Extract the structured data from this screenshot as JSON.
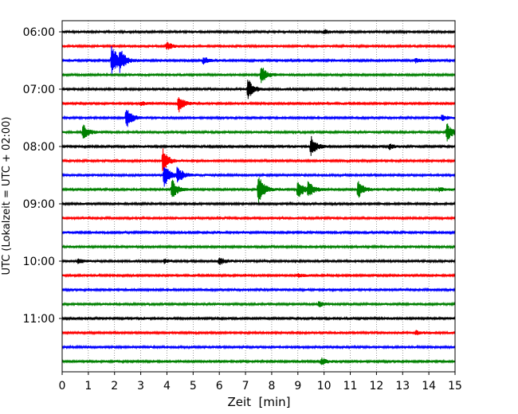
{
  "chart_data": {
    "type": "line",
    "title": "",
    "xlabel": "Zeit  [min]",
    "ylabel": "UTC (Lokalzeit = UTC + 02:00)",
    "xlim": [
      0,
      15
    ],
    "x_ticks": [
      0,
      1,
      2,
      3,
      4,
      5,
      6,
      7,
      8,
      9,
      10,
      11,
      12,
      13,
      14,
      15
    ],
    "y_tick_labels": [
      "06:00",
      "07:00",
      "08:00",
      "09:00",
      "10:00",
      "11:00"
    ],
    "vertical_grid": "dotted",
    "trace_interval_min": 15,
    "color_cycle": [
      "#000000",
      "#ff0000",
      "#0000ff",
      "#008000"
    ],
    "traces": [
      {
        "start": "06:00",
        "color": "black",
        "events": [
          {
            "t": 10.0,
            "amp": 0.15
          }
        ]
      },
      {
        "start": "06:15",
        "color": "red",
        "events": [
          {
            "t": 4.0,
            "amp": 0.3
          }
        ]
      },
      {
        "start": "06:30",
        "color": "blue",
        "events": [
          {
            "t": 1.9,
            "amp": 1.4
          },
          {
            "t": 2.2,
            "amp": 0.8
          },
          {
            "t": 5.4,
            "amp": 0.3
          },
          {
            "t": 13.5,
            "amp": 0.15
          }
        ]
      },
      {
        "start": "06:45",
        "color": "green",
        "events": [
          {
            "t": 7.6,
            "amp": 0.7
          }
        ]
      },
      {
        "start": "07:00",
        "color": "black",
        "events": [
          {
            "t": 7.1,
            "amp": 0.8
          }
        ]
      },
      {
        "start": "07:15",
        "color": "red",
        "events": [
          {
            "t": 4.45,
            "amp": 0.7
          },
          {
            "t": 3.0,
            "amp": 0.15
          }
        ]
      },
      {
        "start": "07:30",
        "color": "blue",
        "events": [
          {
            "t": 2.45,
            "amp": 0.9
          },
          {
            "t": 14.5,
            "amp": 0.2
          }
        ]
      },
      {
        "start": "07:45",
        "color": "green",
        "events": [
          {
            "t": 0.8,
            "amp": 0.6
          },
          {
            "t": 14.7,
            "amp": 0.7
          }
        ]
      },
      {
        "start": "08:00",
        "color": "black",
        "events": [
          {
            "t": 9.5,
            "amp": 0.8
          },
          {
            "t": 12.5,
            "amp": 0.2
          }
        ]
      },
      {
        "start": "08:15",
        "color": "red",
        "events": [
          {
            "t": 3.85,
            "amp": 0.9
          }
        ]
      },
      {
        "start": "08:30",
        "color": "blue",
        "events": [
          {
            "t": 3.9,
            "amp": 0.9
          },
          {
            "t": 4.4,
            "amp": 0.7
          }
        ]
      },
      {
        "start": "08:45",
        "color": "green",
        "events": [
          {
            "t": 4.2,
            "amp": 0.8
          },
          {
            "t": 7.5,
            "amp": 1.2
          },
          {
            "t": 9.0,
            "amp": 0.8
          },
          {
            "t": 9.4,
            "amp": 0.6
          },
          {
            "t": 11.3,
            "amp": 0.7
          },
          {
            "t": 14.4,
            "amp": 0.15
          }
        ]
      },
      {
        "start": "09:00",
        "color": "black",
        "events": []
      },
      {
        "start": "09:15",
        "color": "red",
        "events": []
      },
      {
        "start": "09:30",
        "color": "blue",
        "events": []
      },
      {
        "start": "09:45",
        "color": "green",
        "events": []
      },
      {
        "start": "10:00",
        "color": "black",
        "events": [
          {
            "t": 6.0,
            "amp": 0.3
          },
          {
            "t": 0.6,
            "amp": 0.15
          },
          {
            "t": 3.9,
            "amp": 0.15
          }
        ]
      },
      {
        "start": "10:15",
        "color": "red",
        "events": [
          {
            "t": 9.0,
            "amp": 0.15
          }
        ]
      },
      {
        "start": "10:30",
        "color": "blue",
        "events": []
      },
      {
        "start": "10:45",
        "color": "green",
        "events": [
          {
            "t": 9.8,
            "amp": 0.2
          }
        ]
      },
      {
        "start": "11:00",
        "color": "black",
        "events": []
      },
      {
        "start": "11:15",
        "color": "red",
        "events": [
          {
            "t": 13.5,
            "amp": 0.15
          }
        ]
      },
      {
        "start": "11:30",
        "color": "blue",
        "events": []
      },
      {
        "start": "11:45",
        "color": "green",
        "events": [
          {
            "t": 9.9,
            "amp": 0.25
          }
        ]
      }
    ]
  }
}
